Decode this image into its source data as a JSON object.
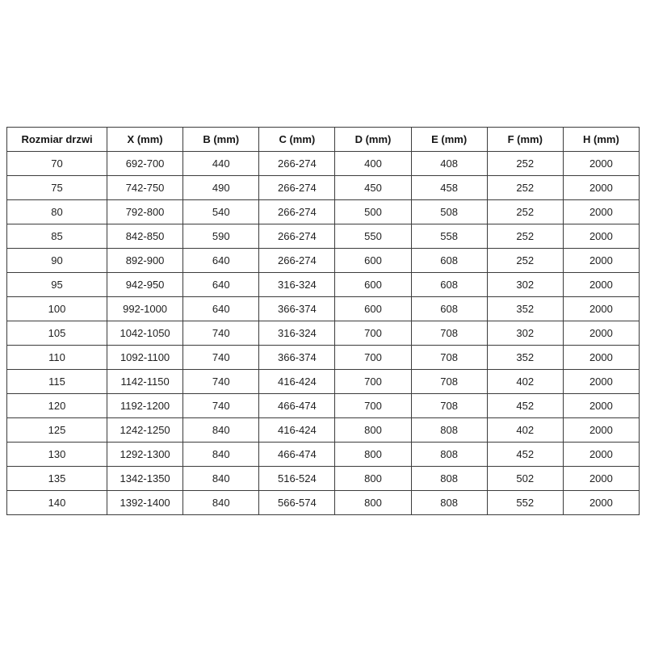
{
  "table": {
    "headers": [
      "Rozmiar drzwi",
      "X (mm)",
      "B (mm)",
      "C (mm)",
      "D (mm)",
      "E (mm)",
      "F (mm)",
      "H (mm)"
    ],
    "rows": [
      [
        "70",
        "692-700",
        "440",
        "266-274",
        "400",
        "408",
        "252",
        "2000"
      ],
      [
        "75",
        "742-750",
        "490",
        "266-274",
        "450",
        "458",
        "252",
        "2000"
      ],
      [
        "80",
        "792-800",
        "540",
        "266-274",
        "500",
        "508",
        "252",
        "2000"
      ],
      [
        "85",
        "842-850",
        "590",
        "266-274",
        "550",
        "558",
        "252",
        "2000"
      ],
      [
        "90",
        "892-900",
        "640",
        "266-274",
        "600",
        "608",
        "252",
        "2000"
      ],
      [
        "95",
        "942-950",
        "640",
        "316-324",
        "600",
        "608",
        "302",
        "2000"
      ],
      [
        "100",
        "992-1000",
        "640",
        "366-374",
        "600",
        "608",
        "352",
        "2000"
      ],
      [
        "105",
        "1042-1050",
        "740",
        "316-324",
        "700",
        "708",
        "302",
        "2000"
      ],
      [
        "110",
        "1092-1100",
        "740",
        "366-374",
        "700",
        "708",
        "352",
        "2000"
      ],
      [
        "115",
        "1142-1150",
        "740",
        "416-424",
        "700",
        "708",
        "402",
        "2000"
      ],
      [
        "120",
        "1192-1200",
        "740",
        "466-474",
        "700",
        "708",
        "452",
        "2000"
      ],
      [
        "125",
        "1242-1250",
        "840",
        "416-424",
        "800",
        "808",
        "402",
        "2000"
      ],
      [
        "130",
        "1292-1300",
        "840",
        "466-474",
        "800",
        "808",
        "452",
        "2000"
      ],
      [
        "135",
        "1342-1350",
        "840",
        "516-524",
        "800",
        "808",
        "502",
        "2000"
      ],
      [
        "140",
        "1392-1400",
        "840",
        "566-574",
        "800",
        "808",
        "552",
        "2000"
      ]
    ],
    "colors": {
      "border": "#3c3c3c",
      "text": "#1f1f1f",
      "background": "#ffffff"
    }
  }
}
